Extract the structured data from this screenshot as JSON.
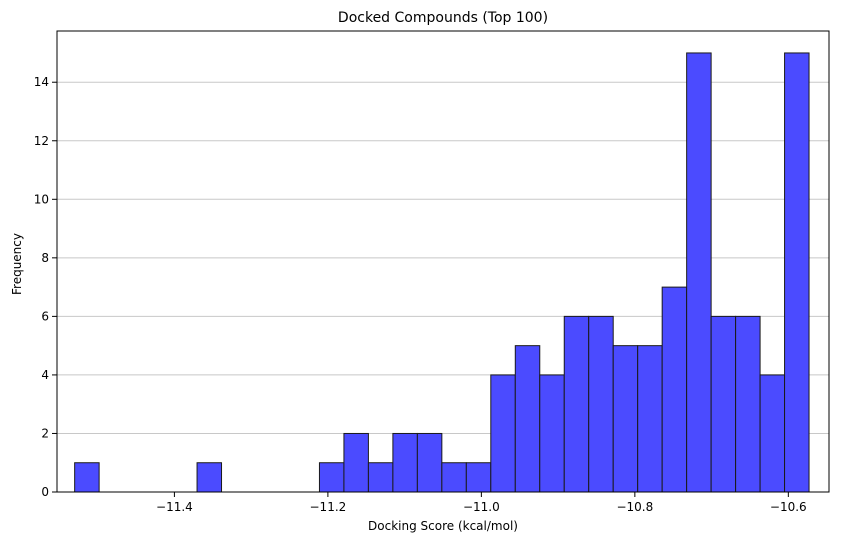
{
  "chart_data": {
    "type": "bar",
    "title": "Docked Compounds (Top 100)",
    "xlabel": "Docking Score (kcal/mol)",
    "ylabel": "Frequency",
    "xlim": [
      -11.553,
      -10.547
    ],
    "ylim": [
      0,
      15.75
    ],
    "xticks": [
      -11.4,
      -11.2,
      -11.0,
      -10.8,
      -10.6
    ],
    "xtick_labels": [
      "−11.4",
      "−11.2",
      "−11.0",
      "−10.8",
      "−10.6"
    ],
    "yticks": [
      0,
      2,
      4,
      6,
      8,
      10,
      12,
      14
    ],
    "grid": "y",
    "bin_start": -11.53,
    "bin_width": 0.0319,
    "counts": [
      1,
      0,
      0,
      0,
      0,
      1,
      0,
      0,
      0,
      0,
      1,
      2,
      1,
      2,
      2,
      1,
      1,
      4,
      5,
      4,
      6,
      6,
      5,
      5,
      7,
      15,
      6,
      6,
      4,
      15
    ],
    "bar_color": "#4b4bff",
    "edge_color": "#1a1a1a"
  }
}
